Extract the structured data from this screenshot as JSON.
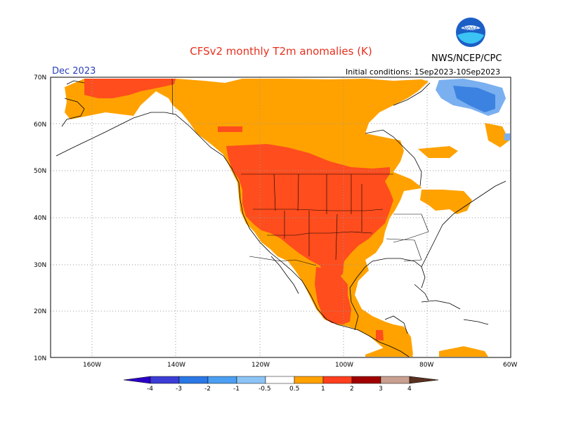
{
  "header": {
    "title": "CFSv2 monthly T2m anomalies (K)",
    "agency": "NWS/NCEP/CPC",
    "month": "Dec 2023",
    "initial_conditions": "Initial conditions: 1Sep2023-10Sep2023",
    "logo_text": "NOAA"
  },
  "axes": {
    "lat_labels": [
      "70N",
      "60N",
      "50N",
      "40N",
      "30N",
      "20N",
      "10N"
    ],
    "lon_labels": [
      "160W",
      "140W",
      "120W",
      "100W",
      "80W",
      "60W"
    ]
  },
  "legend": {
    "labels": [
      "-4",
      "-3",
      "-2",
      "-1",
      "-0.5",
      "0.5",
      "1",
      "2",
      "3",
      "4"
    ],
    "colors": [
      "#2a00c8",
      "#3c3cd6",
      "#2a78e6",
      "#4c9ff2",
      "#8cc4f6",
      "#ffffff",
      "#ffa200",
      "#ff3f1e",
      "#a00000",
      "#c8a090",
      "#5a3020"
    ]
  },
  "colors": {
    "warm1": "#ffa200",
    "warm2": "#ff4d1e",
    "cool1": "#7ab0f0",
    "cool2": "#3c82e0",
    "title": "#e8301e",
    "month": "#2a3fb8"
  }
}
